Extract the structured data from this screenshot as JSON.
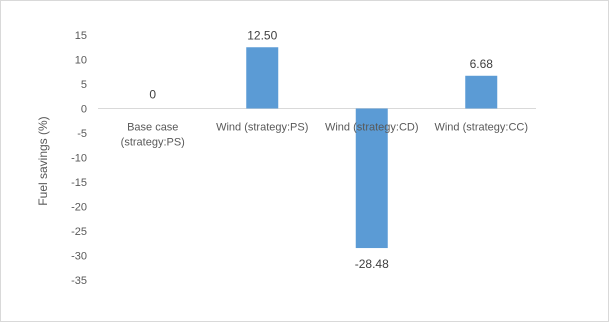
{
  "chart_data": {
    "type": "bar",
    "categories": [
      [
        "Base case",
        "(strategy:PS)"
      ],
      [
        "Wind (strategy:PS)"
      ],
      [
        "Wind (strategy:CD)"
      ],
      [
        "Wind (strategy:CC)"
      ]
    ],
    "values": [
      0,
      12.5,
      -28.48,
      6.68
    ],
    "data_labels": [
      "0",
      "12.50",
      "-28.48",
      "6.68"
    ],
    "ylabel": "Fuel savings (%)",
    "ylim": [
      -35,
      15
    ],
    "yticks": [
      15,
      10,
      5,
      0,
      -5,
      -10,
      -15,
      -20,
      -25,
      -30,
      -35
    ],
    "grid": false,
    "legend": "none",
    "bar_color": "#5b9bd5",
    "zero_line_color": "#d9d9d9"
  }
}
